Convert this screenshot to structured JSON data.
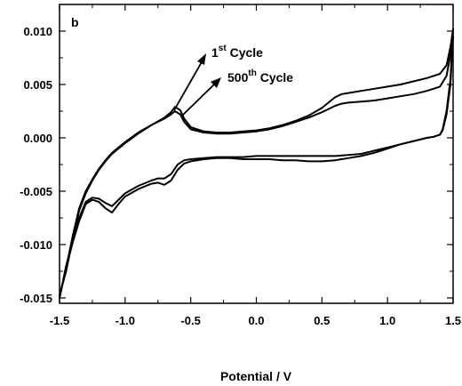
{
  "chart_data": {
    "type": "line",
    "panel_label": "b",
    "title": "",
    "xlabel": "Potential / V",
    "ylabel": "",
    "xlim": [
      -1.5,
      1.5
    ],
    "ylim": [
      -0.0155,
      0.0125
    ],
    "x_ticks": [
      -1.5,
      -1.0,
      -0.5,
      0.0,
      0.5,
      1.0,
      1.5
    ],
    "x_tick_labels": [
      "-1.5",
      "-1.0",
      "-0.5",
      "0.0",
      "0.5",
      "1.0",
      "1.5"
    ],
    "y_ticks": [
      -0.015,
      -0.01,
      -0.005,
      0.0,
      0.005,
      0.01
    ],
    "y_tick_labels": [
      "-0.015",
      "-0.010",
      "-0.005",
      "0.000",
      "0.005",
      "0.010"
    ],
    "grid": false,
    "annotations": [
      {
        "base": "1",
        "sup": "st",
        "text": " Cycle"
      },
      {
        "base": "500",
        "sup": "th",
        "text": " Cycle"
      }
    ],
    "series": [
      {
        "x": [
          -1.5,
          -1.45,
          -1.4,
          -1.35,
          -1.3,
          -1.25,
          -1.2,
          -1.15,
          -1.1,
          -1.0,
          -0.9,
          -0.8,
          -0.7,
          -0.65,
          -0.62,
          -0.58,
          -0.55,
          -0.5,
          -0.4,
          -0.3,
          -0.2,
          -0.1,
          0.0,
          0.1,
          0.2,
          0.3,
          0.4,
          0.5,
          0.55,
          0.6,
          0.65,
          0.7,
          0.8,
          0.9,
          1.0,
          1.1,
          1.2,
          1.3,
          1.4,
          1.45,
          1.48,
          1.5,
          1.48,
          1.45,
          1.42,
          1.4,
          1.35,
          1.3,
          1.2,
          1.1,
          1.0,
          0.9,
          0.8,
          0.7,
          0.6,
          0.5,
          0.4,
          0.3,
          0.2,
          0.1,
          0.0,
          -0.1,
          -0.2,
          -0.3,
          -0.4,
          -0.5,
          -0.55,
          -0.6,
          -0.65,
          -0.7,
          -0.75,
          -0.8,
          -0.9,
          -1.0,
          -1.05,
          -1.1,
          -1.15,
          -1.2,
          -1.25,
          -1.3,
          -1.35,
          -1.4,
          -1.45,
          -1.5
        ],
        "y": [
          -0.0148,
          -0.0125,
          -0.0095,
          -0.0068,
          -0.0052,
          -0.004,
          -0.003,
          -0.0022,
          -0.0015,
          -0.0005,
          0.0004,
          0.0012,
          0.0019,
          0.0024,
          0.0029,
          0.0026,
          0.0018,
          0.001,
          0.0006,
          0.0005,
          0.0005,
          0.0006,
          0.0007,
          0.0009,
          0.0012,
          0.0016,
          0.0021,
          0.0028,
          0.0033,
          0.0038,
          0.0041,
          0.0042,
          0.0044,
          0.0046,
          0.0048,
          0.005,
          0.0053,
          0.0056,
          0.006,
          0.0068,
          0.0085,
          0.0102,
          0.0055,
          0.0025,
          0.0008,
          0.0003,
          0.0001,
          0.0,
          -0.0003,
          -0.0006,
          -0.001,
          -0.0014,
          -0.0017,
          -0.0019,
          -0.0021,
          -0.0022,
          -0.0022,
          -0.0021,
          -0.0021,
          -0.002,
          -0.002,
          -0.002,
          -0.0019,
          -0.0019,
          -0.002,
          -0.0022,
          -0.0024,
          -0.003,
          -0.004,
          -0.0044,
          -0.0042,
          -0.0043,
          -0.0048,
          -0.0055,
          -0.0062,
          -0.007,
          -0.0066,
          -0.006,
          -0.0058,
          -0.0062,
          -0.0078,
          -0.0098,
          -0.0122,
          -0.015
        ]
      },
      {
        "x": [
          -1.5,
          -1.45,
          -1.4,
          -1.35,
          -1.3,
          -1.25,
          -1.2,
          -1.15,
          -1.1,
          -1.0,
          -0.9,
          -0.8,
          -0.7,
          -0.65,
          -0.62,
          -0.58,
          -0.55,
          -0.5,
          -0.4,
          -0.3,
          -0.2,
          -0.1,
          0.0,
          0.1,
          0.2,
          0.3,
          0.4,
          0.5,
          0.55,
          0.6,
          0.65,
          0.7,
          0.8,
          0.9,
          1.0,
          1.1,
          1.2,
          1.3,
          1.4,
          1.45,
          1.48,
          1.5,
          1.48,
          1.45,
          1.42,
          1.4,
          1.35,
          1.3,
          1.2,
          1.1,
          1.0,
          0.9,
          0.8,
          0.7,
          0.6,
          0.5,
          0.4,
          0.3,
          0.2,
          0.1,
          0.0,
          -0.1,
          -0.2,
          -0.3,
          -0.4,
          -0.5,
          -0.55,
          -0.6,
          -0.65,
          -0.7,
          -0.75,
          -0.8,
          -0.9,
          -1.0,
          -1.05,
          -1.1,
          -1.15,
          -1.2,
          -1.25,
          -1.3,
          -1.35,
          -1.4,
          -1.45,
          -1.5
        ],
        "y": [
          -0.0148,
          -0.0122,
          -0.0092,
          -0.0066,
          -0.005,
          -0.0039,
          -0.0029,
          -0.0021,
          -0.0014,
          -0.0004,
          0.0005,
          0.0012,
          0.0018,
          0.0022,
          0.0025,
          0.0022,
          0.0015,
          0.0008,
          0.0005,
          0.0004,
          0.0004,
          0.0005,
          0.0006,
          0.0008,
          0.0011,
          0.0015,
          0.0019,
          0.0024,
          0.0027,
          0.003,
          0.0032,
          0.0033,
          0.0034,
          0.0035,
          0.0037,
          0.0039,
          0.0041,
          0.0044,
          0.0048,
          0.0058,
          0.0078,
          0.0095,
          0.005,
          0.0022,
          0.0007,
          0.0003,
          0.0001,
          0.0,
          -0.0003,
          -0.0006,
          -0.0009,
          -0.0012,
          -0.0015,
          -0.0016,
          -0.0017,
          -0.0017,
          -0.0017,
          -0.0017,
          -0.0017,
          -0.0017,
          -0.0017,
          -0.0018,
          -0.0018,
          -0.0018,
          -0.0019,
          -0.002,
          -0.0021,
          -0.0025,
          -0.0034,
          -0.0038,
          -0.0038,
          -0.004,
          -0.0045,
          -0.0052,
          -0.0058,
          -0.0064,
          -0.0061,
          -0.0057,
          -0.0056,
          -0.006,
          -0.0075,
          -0.0096,
          -0.012,
          -0.015
        ]
      }
    ]
  }
}
